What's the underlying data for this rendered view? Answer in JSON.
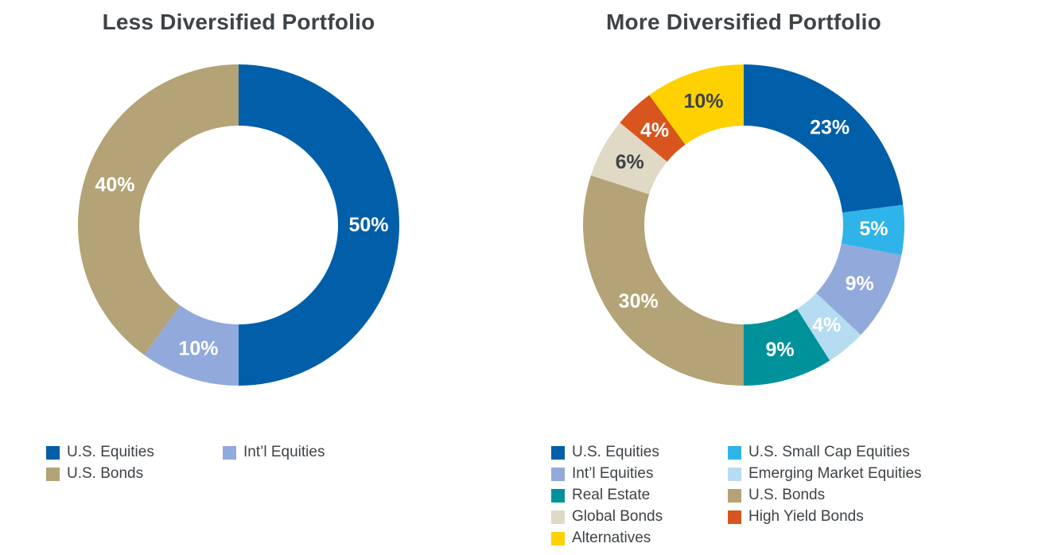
{
  "page": {
    "background": "#FFFFFF",
    "text_color": "#3E4347"
  },
  "chart_data": [
    {
      "type": "pie",
      "subtype": "donut",
      "title": "Less Diversified Portfolio",
      "direction": "clockwise",
      "start_angle_deg": 0,
      "legend_position": "bottom",
      "legend_columns": 2,
      "slices": [
        {
          "label": "U.S. Equities",
          "value": 50,
          "display_label": "50%",
          "color": "#005FA8",
          "label_color": "#FFFFFF"
        },
        {
          "label": "Int’l Equities",
          "value": 10,
          "display_label": "10%",
          "color": "#92A9DC",
          "label_color": "#FFFFFF"
        },
        {
          "label": "U.S. Bonds",
          "value": 40,
          "display_label": "40%",
          "color": "#B3A376",
          "label_color": "#FFFFFF"
        }
      ]
    },
    {
      "type": "pie",
      "subtype": "donut",
      "title": "More Diversified Portfolio",
      "direction": "clockwise",
      "start_angle_deg": 0,
      "legend_position": "bottom",
      "legend_columns": 2,
      "slices": [
        {
          "label": "U.S. Equities",
          "value": 23,
          "display_label": "23%",
          "color": "#005FA8",
          "label_color": "#FFFFFF"
        },
        {
          "label": "U.S. Small Cap Equities",
          "value": 5,
          "display_label": "5%",
          "color": "#2FB4E9",
          "label_color": "#FFFFFF"
        },
        {
          "label": "Int’l Equities",
          "value": 9,
          "display_label": "9%",
          "color": "#92A9DC",
          "label_color": "#FFFFFF"
        },
        {
          "label": "Emerging Market Equities",
          "value": 4,
          "display_label": "4%",
          "color": "#B5DCF0",
          "label_color": "#FFFFFF"
        },
        {
          "label": "Real Estate",
          "value": 9,
          "display_label": "9%",
          "color": "#00929B",
          "label_color": "#FFFFFF"
        },
        {
          "label": "U.S. Bonds",
          "value": 30,
          "display_label": "30%",
          "color": "#B3A376",
          "label_color": "#FFFFFF"
        },
        {
          "label": "Global Bonds",
          "value": 6,
          "display_label": "6%",
          "color": "#E0D9C5",
          "label_color": "#3E4347"
        },
        {
          "label": "High Yield Bonds",
          "value": 4,
          "display_label": "4%",
          "color": "#D8551D",
          "label_color": "#FFFFFF"
        },
        {
          "label": "Alternatives",
          "value": 10,
          "display_label": "10%",
          "color": "#FFD100",
          "label_color": "#3E4347"
        }
      ]
    }
  ]
}
